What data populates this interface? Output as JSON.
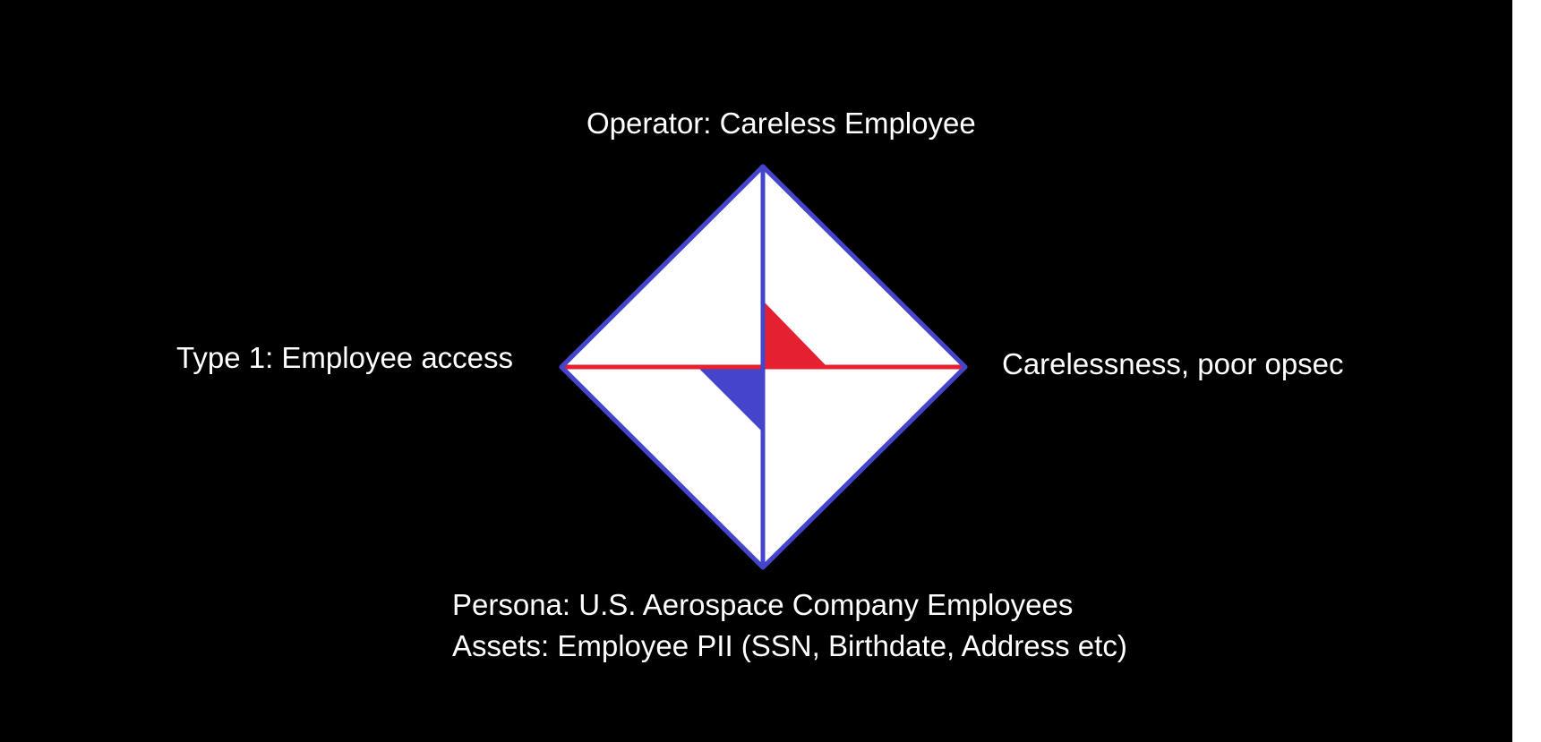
{
  "diagram": {
    "title": "",
    "vertices": {
      "top": "Operator: Careless Employee",
      "left": "Type 1: Employee access",
      "right": "Carelessness, poor opsec",
      "bottom_line1": "Persona: U.S. Aerospace Company Employees",
      "bottom_line2": "Assets: Employee PII (SSN, Birthdate, Address etc)"
    },
    "colors": {
      "background": "#000000",
      "diamond_fill": "#ffffff",
      "outline": "#4545cc",
      "horizontal_axis": "#e52030",
      "red_wedge": "#e52030",
      "blue_wedge": "#4545cc",
      "text": "#ffffff"
    }
  }
}
